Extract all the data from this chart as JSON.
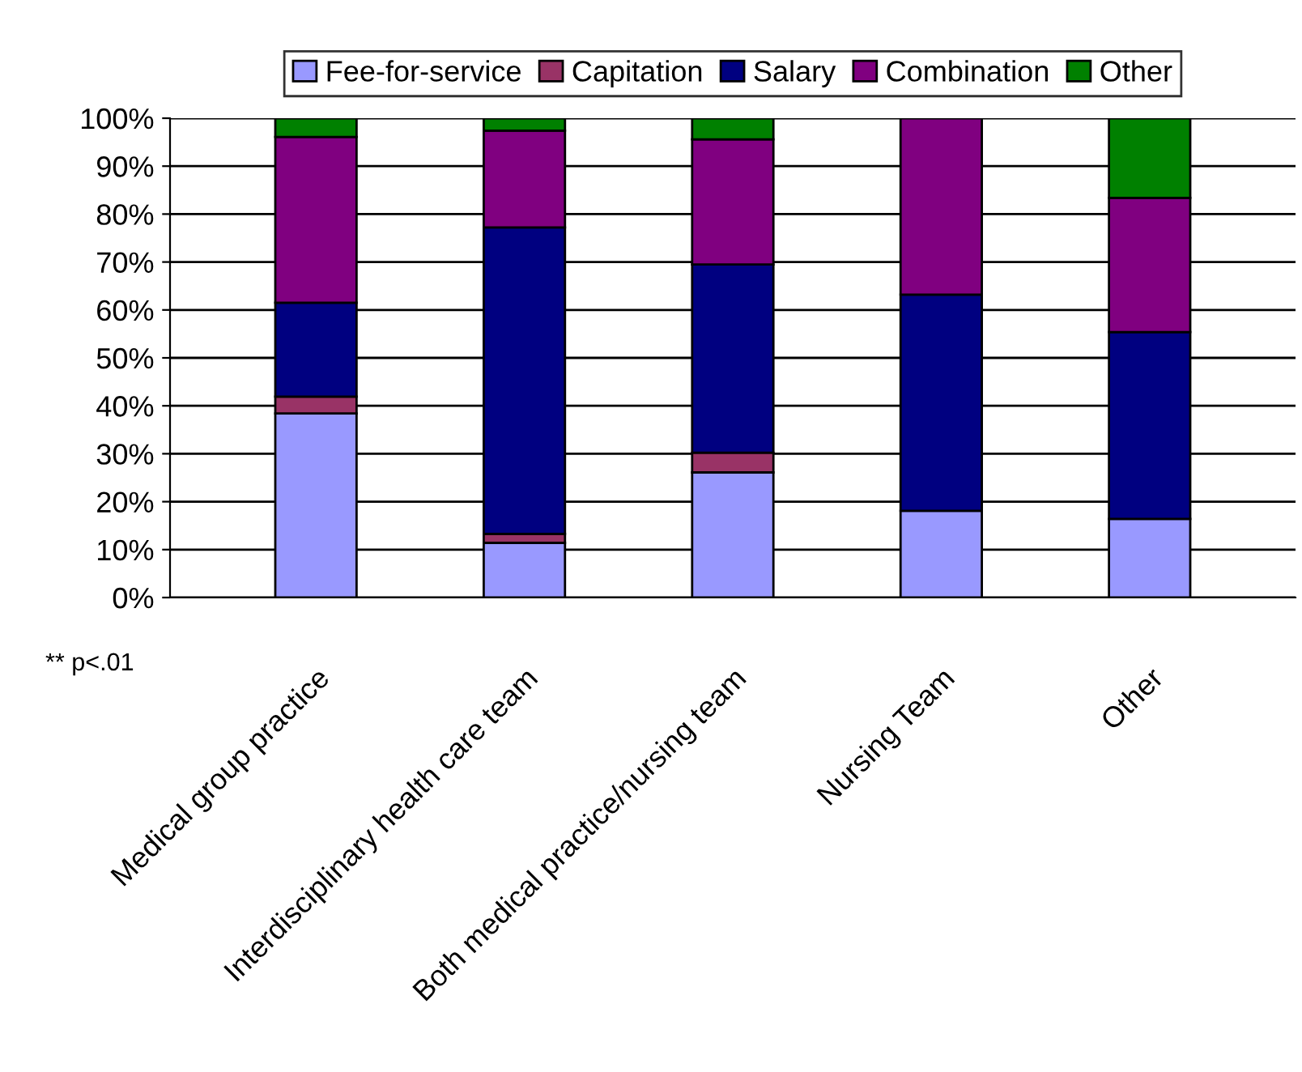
{
  "chart_data": {
    "type": "bar",
    "stacked": true,
    "categories": [
      "Medical group practice",
      "Interdisciplinary health care team",
      "Both medical practice/nursing team",
      "Nursing Team",
      "Other"
    ],
    "series": [
      {
        "name": "Fee-for-service",
        "color": "#9999ff",
        "values": [
          38.4,
          11.4,
          26.1,
          18.1,
          16.4
        ]
      },
      {
        "name": "Capitation",
        "color": "#993366",
        "values": [
          3.5,
          1.9,
          4.1,
          0,
          0
        ]
      },
      {
        "name": "Salary",
        "color": "#000080",
        "values": [
          19.6,
          63.9,
          39.3,
          45.1,
          39.0
        ]
      },
      {
        "name": "Combination",
        "color": "#800080",
        "values": [
          34.6,
          20.2,
          26.1,
          36.8,
          28.0
        ]
      },
      {
        "name": "Other",
        "color": "#008000",
        "values": [
          3.9,
          2.6,
          4.4,
          0,
          16.6
        ]
      }
    ],
    "ylim": [
      0,
      100
    ],
    "yticks": [
      {
        "value": 0,
        "label": "0%"
      },
      {
        "value": 10,
        "label": "10%"
      },
      {
        "value": 20,
        "label": "20%"
      },
      {
        "value": 30,
        "label": "30%"
      },
      {
        "value": 40,
        "label": "40%"
      },
      {
        "value": 50,
        "label": "50%"
      },
      {
        "value": 60,
        "label": "60%"
      },
      {
        "value": 70,
        "label": "70%"
      },
      {
        "value": 80,
        "label": "80%"
      },
      {
        "value": 90,
        "label": "90%"
      },
      {
        "value": 100,
        "label": "100%"
      }
    ],
    "grid": "y",
    "legend": "top",
    "annotations": [
      "** p<.01"
    ]
  }
}
